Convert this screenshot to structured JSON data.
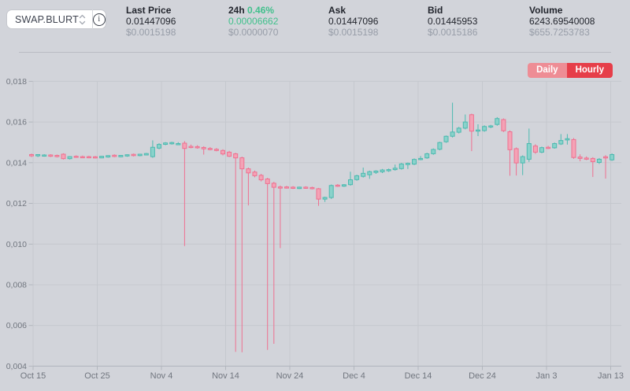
{
  "pair_selector": {
    "value": "SWAP.BLURT"
  },
  "stats": [
    {
      "label": "Last Price",
      "value": "0.01447096",
      "usd": "$0.0015198"
    },
    {
      "label": "24h",
      "change": "0.46%",
      "value": "0.00006662",
      "usd": "$0.0000070"
    },
    {
      "label": "Ask",
      "value": "0.01447096",
      "usd": "$0.0015198"
    },
    {
      "label": "Bid",
      "value": "0.01445953",
      "usd": "$0.0015186"
    },
    {
      "label": "Volume",
      "value": "6243.69540008",
      "usd": "$655.7253783"
    }
  ],
  "timeframe_buttons": {
    "daily": "Daily",
    "hourly": "Hourly",
    "active": "Hourly"
  },
  "colors": {
    "background": "#d2d4da",
    "up_fill": "#8ad2cb",
    "up_stroke": "#4cbab0",
    "down_fill": "#f4a3b6",
    "down_stroke": "#ef7090",
    "grid": "#c5c8ce",
    "axis": "#b2b6bd",
    "tick_text": "#71767f",
    "accent_green": "#41c08c",
    "accent_red": "#e63e49",
    "accent_red_muted": "#ee8d95"
  },
  "chart_data": {
    "type": "candlestick",
    "title": "SWAP.BLURT daily price",
    "x_tick_labels": [
      "Oct 15",
      "Oct 25",
      "Nov 4",
      "Nov 14",
      "Nov 24",
      "Dec 4",
      "Dec 14",
      "Dec 24",
      "Jan 3",
      "Jan 13"
    ],
    "y_tick_labels": [
      "0,018",
      "0,016",
      "0,014",
      "0,012",
      "0,010",
      "0,008",
      "0,006",
      "0,004"
    ],
    "y_tick_values": [
      0.018,
      0.016,
      0.014,
      0.012,
      0.01,
      0.008,
      0.006,
      0.004
    ],
    "y_range": [
      0.004,
      0.018
    ],
    "grid": true,
    "candles_ohlc": [
      [
        0.0144,
        0.01445,
        0.01428,
        0.01434
      ],
      [
        0.01434,
        0.01442,
        0.01428,
        0.0144
      ],
      [
        0.01436,
        0.01442,
        0.0143,
        0.01438
      ],
      [
        0.01438,
        0.01442,
        0.01428,
        0.01432
      ],
      [
        0.01436,
        0.0144,
        0.01426,
        0.0143
      ],
      [
        0.01442,
        0.01446,
        0.01416,
        0.0142
      ],
      [
        0.0142,
        0.01432,
        0.01416,
        0.0143
      ],
      [
        0.01432,
        0.01436,
        0.01424,
        0.01427
      ],
      [
        0.0143,
        0.01435,
        0.01423,
        0.01426
      ],
      [
        0.0143,
        0.01434,
        0.01422,
        0.01427
      ],
      [
        0.01429,
        0.01433,
        0.01421,
        0.01425
      ],
      [
        0.01424,
        0.01434,
        0.01422,
        0.01432
      ],
      [
        0.01428,
        0.01437,
        0.01425,
        0.01435
      ],
      [
        0.01437,
        0.01441,
        0.01427,
        0.01431
      ],
      [
        0.01429,
        0.01438,
        0.01427,
        0.01436
      ],
      [
        0.01433,
        0.01441,
        0.01429,
        0.01439
      ],
      [
        0.01441,
        0.01445,
        0.01431,
        0.01435
      ],
      [
        0.01435,
        0.01444,
        0.01432,
        0.01442
      ],
      [
        0.01438,
        0.01448,
        0.01436,
        0.01445
      ],
      [
        0.0143,
        0.0151,
        0.01424,
        0.01476
      ],
      [
        0.01472,
        0.01496,
        0.01466,
        0.0149
      ],
      [
        0.0149,
        0.01501,
        0.01486,
        0.01497
      ],
      [
        0.01493,
        0.01503,
        0.01489,
        0.01499
      ],
      [
        0.01492,
        0.01501,
        0.01487,
        0.01494
      ],
      [
        0.01496,
        0.01506,
        0.0099,
        0.0147
      ],
      [
        0.0148,
        0.01489,
        0.01471,
        0.01477
      ],
      [
        0.01479,
        0.01486,
        0.01469,
        0.01475
      ],
      [
        0.01475,
        0.01481,
        0.0144,
        0.01468
      ],
      [
        0.0147,
        0.01477,
        0.01461,
        0.01467
      ],
      [
        0.01466,
        0.01472,
        0.01456,
        0.01461
      ],
      [
        0.0146,
        0.01466,
        0.01436,
        0.01443
      ],
      [
        0.01452,
        0.01458,
        0.01428,
        0.01432
      ],
      [
        0.01444,
        0.01449,
        0.0047,
        0.01424
      ],
      [
        0.01424,
        0.0143,
        0.00468,
        0.0137
      ],
      [
        0.0137,
        0.01376,
        0.0119,
        0.0135
      ],
      [
        0.01354,
        0.01362,
        0.01328,
        0.01336
      ],
      [
        0.01338,
        0.01345,
        0.01308,
        0.01316
      ],
      [
        0.0132,
        0.01326,
        0.0048,
        0.01297
      ],
      [
        0.01299,
        0.01306,
        0.0051,
        0.01279
      ],
      [
        0.01281,
        0.01288,
        0.0098,
        0.01277
      ],
      [
        0.01281,
        0.01286,
        0.01273,
        0.01278
      ],
      [
        0.0128,
        0.01285,
        0.01271,
        0.01275
      ],
      [
        0.01273,
        0.01282,
        0.01271,
        0.0128
      ],
      [
        0.0128,
        0.01284,
        0.01272,
        0.01276
      ],
      [
        0.01278,
        0.01282,
        0.01269,
        0.01274
      ],
      [
        0.01272,
        0.01276,
        0.01188,
        0.01221
      ],
      [
        0.01221,
        0.01233,
        0.01207,
        0.01229
      ],
      [
        0.01229,
        0.01293,
        0.01222,
        0.01288
      ],
      [
        0.0129,
        0.01295,
        0.01281,
        0.01285
      ],
      [
        0.01285,
        0.01295,
        0.01281,
        0.01292
      ],
      [
        0.01292,
        0.01356,
        0.01287,
        0.01316
      ],
      [
        0.01317,
        0.01341,
        0.01311,
        0.01336
      ],
      [
        0.01333,
        0.01376,
        0.01327,
        0.01348
      ],
      [
        0.01341,
        0.01361,
        0.01321,
        0.01356
      ],
      [
        0.01352,
        0.01363,
        0.01345,
        0.01359
      ],
      [
        0.01355,
        0.01369,
        0.01349,
        0.01364
      ],
      [
        0.01361,
        0.01371,
        0.01355,
        0.01366
      ],
      [
        0.01366,
        0.01391,
        0.01361,
        0.01373
      ],
      [
        0.01371,
        0.01399,
        0.01366,
        0.01394
      ],
      [
        0.01391,
        0.01401,
        0.01369,
        0.01397
      ],
      [
        0.01393,
        0.01421,
        0.01388,
        0.01416
      ],
      [
        0.01416,
        0.01433,
        0.01412,
        0.01421
      ],
      [
        0.01424,
        0.01449,
        0.01419,
        0.01444
      ],
      [
        0.01444,
        0.0147,
        0.01439,
        0.01465
      ],
      [
        0.01466,
        0.01503,
        0.01461,
        0.01499
      ],
      [
        0.01503,
        0.01534,
        0.01498,
        0.0153
      ],
      [
        0.0153,
        0.01695,
        0.01524,
        0.01551
      ],
      [
        0.0155,
        0.01576,
        0.01544,
        0.0157
      ],
      [
        0.0157,
        0.01637,
        0.01564,
        0.016
      ],
      [
        0.01636,
        0.01641,
        0.01457,
        0.01555
      ],
      [
        0.01556,
        0.01589,
        0.01531,
        0.01561
      ],
      [
        0.01558,
        0.01584,
        0.01552,
        0.01578
      ],
      [
        0.01578,
        0.01586,
        0.0157,
        0.01581
      ],
      [
        0.01588,
        0.01624,
        0.01582,
        0.01617
      ],
      [
        0.01612,
        0.01618,
        0.01551,
        0.01557
      ],
      [
        0.01552,
        0.01559,
        0.01336,
        0.01464
      ],
      [
        0.01469,
        0.01475,
        0.01337,
        0.01399
      ],
      [
        0.01399,
        0.01436,
        0.01339,
        0.0143
      ],
      [
        0.01417,
        0.01568,
        0.01404,
        0.01494
      ],
      [
        0.01482,
        0.01491,
        0.01444,
        0.01452
      ],
      [
        0.01452,
        0.01479,
        0.01447,
        0.01474
      ],
      [
        0.01476,
        0.01483,
        0.01467,
        0.01471
      ],
      [
        0.01473,
        0.01499,
        0.01469,
        0.01494
      ],
      [
        0.01492,
        0.01541,
        0.01487,
        0.01509
      ],
      [
        0.01512,
        0.01541,
        0.01489,
        0.01518
      ],
      [
        0.01514,
        0.01521,
        0.01419,
        0.01426
      ],
      [
        0.01428,
        0.01441,
        0.01407,
        0.01421
      ],
      [
        0.01423,
        0.01431,
        0.01413,
        0.01418
      ],
      [
        0.01421,
        0.01427,
        0.0133,
        0.01405
      ],
      [
        0.01401,
        0.01423,
        0.01394,
        0.01417
      ],
      [
        0.01429,
        0.01437,
        0.01322,
        0.01424
      ],
      [
        0.01414,
        0.01446,
        0.01409,
        0.0144
      ]
    ]
  }
}
